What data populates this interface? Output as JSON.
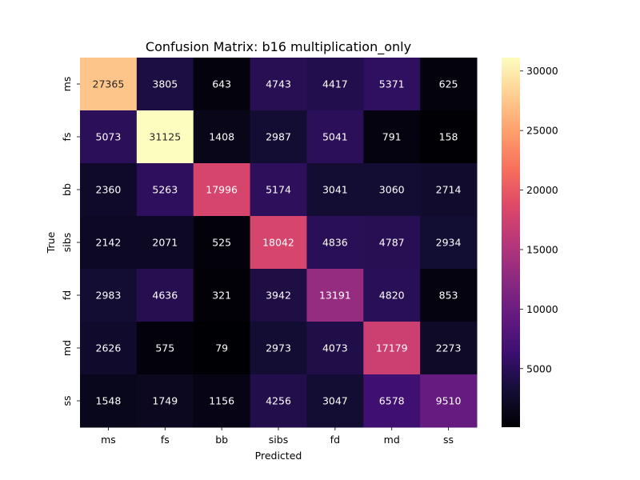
{
  "chart_data": {
    "type": "heatmap",
    "title": "Confusion Matrix: b16 multiplication_only",
    "xlabel": "Predicted",
    "ylabel": "True",
    "x_categories": [
      "ms",
      "fs",
      "bb",
      "sibs",
      "fd",
      "md",
      "ss"
    ],
    "y_categories": [
      "ms",
      "fs",
      "bb",
      "sibs",
      "fd",
      "md",
      "ss"
    ],
    "matrix": [
      [
        27365,
        3805,
        643,
        4743,
        4417,
        5371,
        625
      ],
      [
        5073,
        31125,
        1408,
        2987,
        5041,
        791,
        158
      ],
      [
        2360,
        5263,
        17996,
        5174,
        3041,
        3060,
        2714
      ],
      [
        2142,
        2071,
        525,
        18042,
        4836,
        4787,
        2934
      ],
      [
        2983,
        4636,
        321,
        3942,
        13191,
        4820,
        853
      ],
      [
        2626,
        575,
        79,
        2973,
        4073,
        17179,
        2273
      ],
      [
        1548,
        1749,
        1156,
        4256,
        3047,
        6578,
        9510
      ]
    ],
    "colormap": "magma",
    "colorbar": {
      "vmin": 79,
      "vmax": 31125,
      "ticks": [
        5000,
        10000,
        15000,
        20000,
        25000,
        30000
      ]
    }
  }
}
